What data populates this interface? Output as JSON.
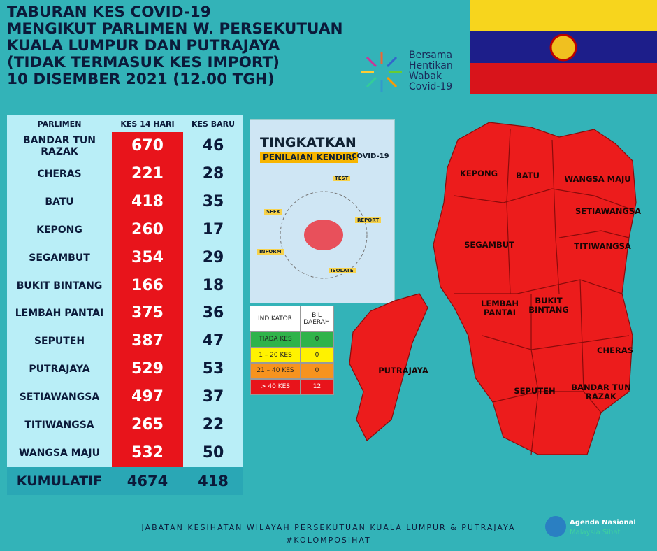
{
  "title": {
    "lines": [
      "TABURAN KES COVID-19",
      "MENGIKUT PARLIMEN W. PERSEKUTUAN",
      "KUALA LUMPUR DAN PUTRAJAYA",
      "(TIDAK TERMASUK KES IMPORT)",
      "10 DISEMBER 2021 (12.00 TGH)"
    ]
  },
  "logo": {
    "lines": [
      "Bersama",
      "Hentikan",
      "Wabak",
      "Covid-19"
    ]
  },
  "table": {
    "header": [
      "PARLIMEN",
      "KES 14 HARI",
      "KES BARU"
    ],
    "rows": [
      [
        "BANDAR TUN RAZAK",
        670,
        46
      ],
      [
        "CHERAS",
        221,
        28
      ],
      [
        "BATU",
        418,
        35
      ],
      [
        "KEPONG",
        260,
        17
      ],
      [
        "SEGAMBUT",
        354,
        29
      ],
      [
        "BUKIT BINTANG",
        166,
        18
      ],
      [
        "LEMBAH PANTAI",
        375,
        36
      ],
      [
        "SEPUTEH",
        387,
        47
      ],
      [
        "PUTRAJAYA",
        529,
        53
      ],
      [
        "SETIAWANGSA",
        497,
        37
      ],
      [
        "TITIWANGSA",
        265,
        22
      ],
      [
        "WANGSA MAJU",
        532,
        50
      ]
    ],
    "total": [
      "KUMULATIF",
      4674,
      418
    ]
  },
  "poster": {
    "title": "TINGKATKAN",
    "subtitle": "PENILAIAN KENDIRI",
    "tag": "COVID-19",
    "steps": [
      "SEEK",
      "TEST",
      "REPORT",
      "ISOLATE",
      "INFORM"
    ]
  },
  "indicator": {
    "header": [
      "INDIKATOR",
      "BIL DAERAH"
    ],
    "rows": [
      [
        "TIADA KES",
        0
      ],
      [
        "1 – 20 KES",
        0
      ],
      [
        "21 – 40 KES",
        0
      ],
      [
        "> 40 KES",
        12
      ]
    ]
  },
  "map": {
    "labels": [
      "KEPONG",
      "BATU",
      "WANGSA MAJU",
      "SETIAWANGSA",
      "SEGAMBUT",
      "TITIWANGSA",
      "LEMBAH PANTAI",
      "BUKIT BINTANG",
      "CHERAS",
      "SEPUTEH",
      "BANDAR TUN RAZAK",
      "PUTRAJAYA"
    ]
  },
  "footer": {
    "text": "JABATAN KESIHATAN WILAYAH PERSEKUTUAN KUALA LUMPUR & PUTRAJAYA",
    "hashtag": "#KOLOMPOSIHAT",
    "agenda": [
      "Agenda Nasional",
      "Malaysia Sihat"
    ]
  }
}
